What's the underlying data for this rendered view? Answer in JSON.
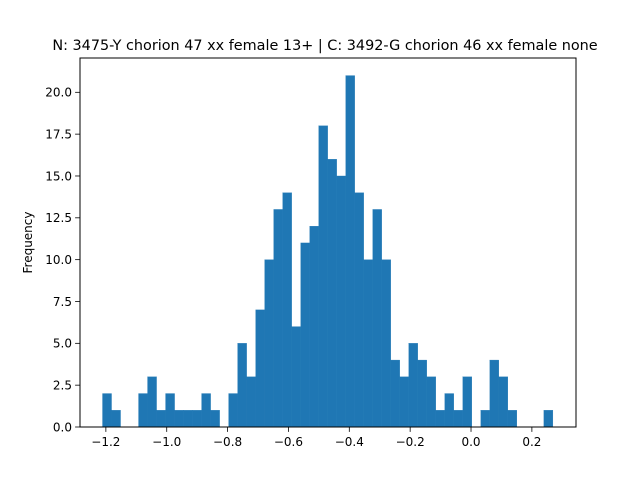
{
  "chart_data": {
    "type": "bar",
    "subtype": "histogram",
    "title": "N: 3475-Y chorion 47 xx female 13+ | C: 3492-G chorion 46 xx female none",
    "xlabel": "",
    "ylabel": "Frequency",
    "xlim": [
      -1.285,
      0.345
    ],
    "ylim": [
      0,
      22.05
    ],
    "x_ticks": [
      -1.2,
      -1.0,
      -0.8,
      -0.6,
      -0.4,
      -0.2,
      0.0,
      0.2
    ],
    "x_tick_labels": [
      "−1.2",
      "−1.0",
      "−0.8",
      "−0.6",
      "−0.4",
      "−0.2",
      "0.0",
      "0.2"
    ],
    "y_ticks": [
      0.0,
      2.5,
      5.0,
      7.5,
      10.0,
      12.5,
      15.0,
      17.5,
      20.0
    ],
    "y_tick_labels": [
      "0.0",
      "2.5",
      "5.0",
      "7.5",
      "10.0",
      "12.5",
      "15.0",
      "17.5",
      "20.0"
    ],
    "grid": false,
    "bar_color": "#1f77b4",
    "bin_edges": [
      -1.211,
      -1.1814,
      -1.1518,
      -1.1222,
      -1.0926,
      -1.063,
      -1.0334,
      -1.0038,
      -0.9742,
      -0.9446,
      -0.915,
      -0.8854,
      -0.8558,
      -0.8262,
      -0.7966,
      -0.767,
      -0.7374,
      -0.7078,
      -0.6782,
      -0.6486,
      -0.619,
      -0.5894,
      -0.5598,
      -0.5302,
      -0.5006,
      -0.471,
      -0.4414,
      -0.4118,
      -0.3822,
      -0.3526,
      -0.323,
      -0.2934,
      -0.2638,
      -0.2342,
      -0.2046,
      -0.175,
      -0.1454,
      -0.1158,
      -0.0862,
      -0.0566,
      -0.027,
      0.0026,
      0.0322,
      0.0618,
      0.0914,
      0.121,
      0.1506,
      0.1802,
      0.2098,
      0.2394,
      0.269
    ],
    "values": [
      2,
      1,
      0,
      0,
      2,
      3,
      1,
      2,
      1,
      1,
      1,
      2,
      1,
      0,
      2,
      5,
      3,
      7,
      10,
      13,
      14,
      6,
      11,
      12,
      18,
      16,
      15,
      21,
      14,
      10,
      13,
      10,
      4,
      3,
      5,
      4,
      3,
      1,
      2,
      1,
      3,
      0,
      1,
      4,
      3,
      1,
      0,
      0,
      0,
      1
    ]
  }
}
